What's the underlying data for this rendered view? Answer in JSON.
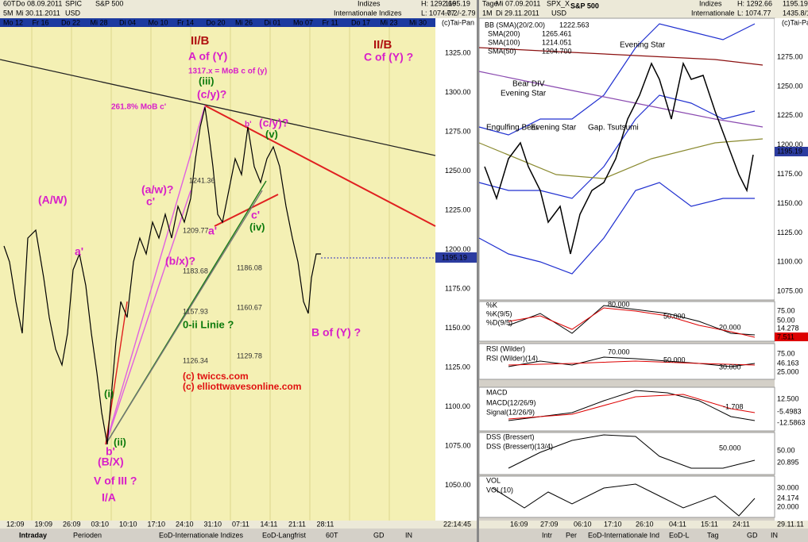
{
  "left": {
    "header": [
      "60T",
      "Do 08.09.2011",
      "SPIC",
      "S&P 500",
      "5M",
      "Mi 30.11.2011",
      "USD",
      "Indizes",
      "Internationale Indizes",
      "H: 1292.66",
      "L: 1074.77",
      "1195.19",
      "-0.2/-2.79",
      "(c)Tai-Pan"
    ],
    "dates": [
      "Mo 12",
      "Fr 16",
      "Do 22",
      "Mi 28",
      "Di 04",
      "Mo 10",
      "Fr 14",
      "Do 20",
      "Mi 26",
      "Di 01",
      "Mo 07",
      "Fr 11",
      "Do 17",
      "Mi 23",
      "Mi 30"
    ],
    "yaxis": [
      "1325.00",
      "1300.00",
      "1275.00",
      "1250.00",
      "1225.00",
      "1200.00",
      "1175.00",
      "1150.00",
      "1125.00",
      "1100.00",
      "1075.00",
      "1050.00"
    ],
    "price_tag": "1195.19",
    "annotations": [
      "II/B",
      "A of (Y)",
      "1317.x = MoB c of (y)",
      "(iii)",
      "(c/y)?",
      "261.8% MoB c'",
      "b'",
      "(c/y)?",
      "(v)",
      "(A/W)",
      "(a/w)?",
      "c'",
      "a'",
      "1241.36",
      "c'",
      "a'",
      "(iv)",
      "1209.77",
      "(b/x)?",
      "1183.68",
      "1186.08",
      "1157.93",
      "1160.67",
      "0-ii Linie ?",
      "1126.34",
      "1129.78",
      "(c) twiccs.com",
      "(c) elliottwavesonline.com",
      "(i)",
      "(ii)",
      "b'",
      "(B/X)",
      "V of III ?",
      "I/A",
      "II/B",
      "C of (Y) ?",
      "B of (Y) ?"
    ],
    "xaxis": [
      "12:09",
      "19:09",
      "26:09",
      "03:10",
      "10:10",
      "17:10",
      "24:10",
      "31:10",
      "07:11",
      "14:11",
      "21:11",
      "28:11"
    ],
    "clock": "22:14:45",
    "tabs": [
      "Intraday",
      "Perioden",
      "EoD-Internationale Indizes",
      "EoD-Langfrist",
      "60T",
      "GD",
      "IN"
    ]
  },
  "right": {
    "header": [
      "Tage",
      "Mi 07.09.2011",
      "SPX_X",
      "S&P 500",
      "1M",
      "Di 29.11.2011",
      "USD",
      "Indizes",
      "Internationale",
      "H: 1292.66",
      "L: 1074.77",
      "1195.19",
      "1435.8/11",
      "(c)Tai-Pan"
    ],
    "legend": [
      "BB (SMA)(20/2.00)",
      "1222.563",
      "SMA(200)",
      "1265.461",
      "SMA(100)",
      "1214.051",
      "SMA(50)",
      "1204.700"
    ],
    "yaxis": [
      "1275.00",
      "1250.00",
      "1225.00",
      "1200.00",
      "1175.00",
      "1150.00",
      "1125.00",
      "1100.00",
      "1075.00"
    ],
    "price_tag": "1195.19",
    "annotations": [
      "Evening Star",
      "Bear DIV",
      "Evening Star",
      "Engulfing Bear",
      "Evening Star",
      "Gap. Tsutsumi"
    ],
    "panes": {
      "k": [
        "%K",
        "%K(9/5)",
        "%D(9/5)",
        "80.000",
        "50.000",
        "20.000",
        "75.00",
        "50.00",
        "14.278",
        "7.511"
      ],
      "rsi": [
        "RSI (Wilder)",
        "RSI (Wilder)(14)",
        "70.000",
        "50.000",
        "30.000",
        "75.00",
        "46.163",
        "25.000"
      ],
      "macd": [
        "MACD",
        "MACD(12/26/9)",
        "Signal(12/26/9)",
        "-1.708",
        "12.500",
        "-5.4983",
        "-12.5863"
      ],
      "dss": [
        "DSS (Bressert)",
        "DSS (Bressert)(13/4)",
        "50.000",
        "50.00",
        "20.895"
      ],
      "vol": [
        "VOL",
        "VOL(10)",
        "30.000",
        "24.174",
        "20.000"
      ]
    },
    "xaxis": [
      "16:09",
      "27:09",
      "06:10",
      "17:10",
      "26:10",
      "04:11",
      "15:11",
      "24:11",
      "29.11.11"
    ],
    "tabs": [
      "Intr",
      "Per",
      "EoD-Internationale Ind",
      "EoD-L",
      "Tag",
      "GD",
      "IN"
    ]
  }
}
